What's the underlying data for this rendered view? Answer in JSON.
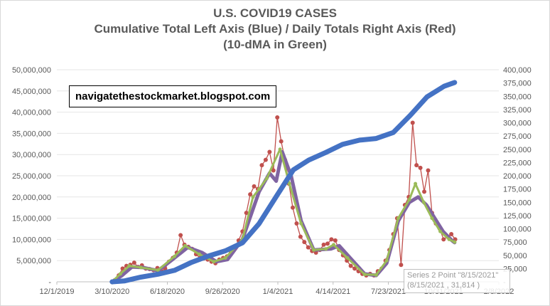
{
  "chart_data": {
    "type": "line",
    "title": "U.S. COVID19 CASES",
    "subtitle": "Cumulative Total Left Axis (Blue) / Daily Totals Right Axis (Red)",
    "subtitle2": "(10-dMA in Green)",
    "annotation": "navigatethestockmarket.blogspot.com",
    "tooltip": {
      "line1": "Series 2 Point \"8/15/2021\"",
      "line2": "(8/15/2021 , 31,814 )"
    },
    "x_axis": {
      "ticks": [
        "12/1/2019",
        "3/10/2020",
        "6/18/2020",
        "9/26/2020",
        "1/4/2021",
        "4/14/2021",
        "7/23/2021",
        "10/31/2021",
        "2/8/2022"
      ],
      "range": [
        "2019-12-01",
        "2022-02-08"
      ]
    },
    "y_left": {
      "ylim": [
        0,
        50000000
      ],
      "ticks": [
        "-",
        "5,000,000",
        "10,000,000",
        "15,000,000",
        "20,000,000",
        "25,000,000",
        "30,000,000",
        "35,000,000",
        "40,000,000",
        "45,000,000",
        "50,000,000"
      ]
    },
    "y_right": {
      "ylim": [
        0,
        400000
      ],
      "ticks": [
        "-",
        "25,000",
        "50,000",
        "75,000",
        "100,000",
        "125,000",
        "150,000",
        "175,000",
        "200,000",
        "225,000",
        "250,000",
        "275,000",
        "300,000",
        "325,000",
        "350,000",
        "375,000",
        "400,000"
      ]
    },
    "colors": {
      "cumulative": "#4472c4",
      "daily": "#c0504d",
      "ma10": "#9bbb59",
      "ma_long": "#8064a2"
    },
    "series": [
      {
        "key": "cumulative",
        "axis": "left",
        "kind": "line",
        "x": [
          "2020-03-10",
          "2020-04-01",
          "2020-05-01",
          "2020-06-01",
          "2020-07-01",
          "2020-08-01",
          "2020-09-01",
          "2020-10-01",
          "2020-11-01",
          "2020-12-01",
          "2021-01-01",
          "2021-02-01",
          "2021-03-01",
          "2021-04-01",
          "2021-05-01",
          "2021-06-01",
          "2021-07-01",
          "2021-08-01",
          "2021-09-01",
          "2021-10-01",
          "2021-11-01",
          "2021-11-20"
        ],
        "y": [
          1000,
          200000,
          1100000,
          1800000,
          2700000,
          4600000,
          6100000,
          7300000,
          9200000,
          13700000,
          20100000,
          26400000,
          28700000,
          30500000,
          32400000,
          33400000,
          33800000,
          35200000,
          39300000,
          43600000,
          46100000,
          47000000
        ]
      },
      {
        "key": "daily",
        "axis": "right",
        "kind": "scatter-line",
        "x": [
          "2020-03-15",
          "2020-03-22",
          "2020-03-29",
          "2020-04-05",
          "2020-04-12",
          "2020-04-19",
          "2020-04-26",
          "2020-05-03",
          "2020-05-10",
          "2020-05-17",
          "2020-05-24",
          "2020-05-31",
          "2020-06-07",
          "2020-06-14",
          "2020-06-21",
          "2020-06-28",
          "2020-07-05",
          "2020-07-12",
          "2020-07-19",
          "2020-07-26",
          "2020-08-02",
          "2020-08-09",
          "2020-08-16",
          "2020-08-23",
          "2020-08-30",
          "2020-09-06",
          "2020-09-13",
          "2020-09-20",
          "2020-09-27",
          "2020-10-04",
          "2020-10-11",
          "2020-10-18",
          "2020-10-25",
          "2020-11-01",
          "2020-11-08",
          "2020-11-15",
          "2020-11-22",
          "2020-11-29",
          "2020-12-06",
          "2020-12-13",
          "2020-12-20",
          "2020-12-27",
          "2021-01-03",
          "2021-01-10",
          "2021-01-17",
          "2021-01-24",
          "2021-01-31",
          "2021-02-07",
          "2021-02-14",
          "2021-02-21",
          "2021-02-28",
          "2021-03-07",
          "2021-03-14",
          "2021-03-21",
          "2021-03-28",
          "2021-04-04",
          "2021-04-11",
          "2021-04-18",
          "2021-04-25",
          "2021-05-02",
          "2021-05-09",
          "2021-05-16",
          "2021-05-23",
          "2021-05-30",
          "2021-06-06",
          "2021-06-13",
          "2021-06-20",
          "2021-06-27",
          "2021-07-04",
          "2021-07-11",
          "2021-07-18",
          "2021-07-25",
          "2021-08-01",
          "2021-08-08",
          "2021-08-15",
          "2021-08-22",
          "2021-08-29",
          "2021-09-05",
          "2021-09-12",
          "2021-09-19",
          "2021-09-26",
          "2021-10-03",
          "2021-10-10",
          "2021-10-17",
          "2021-10-24",
          "2021-10-31",
          "2021-11-07",
          "2021-11-14",
          "2021-11-21"
        ],
        "y": [
          3000,
          12000,
          25000,
          30000,
          32000,
          36000,
          28000,
          31000,
          25000,
          24000,
          22000,
          26000,
          20000,
          25000,
          38000,
          45000,
          55000,
          88000,
          70000,
          66000,
          62000,
          52000,
          45000,
          44000,
          42000,
          38000,
          35000,
          42000,
          45000,
          48000,
          56000,
          65000,
          78000,
          95000,
          130000,
          165000,
          180000,
          175000,
          220000,
          230000,
          245000,
          210000,
          310000,
          265000,
          230000,
          185000,
          140000,
          110000,
          85000,
          75000,
          65000,
          58000,
          55000,
          60000,
          70000,
          72000,
          80000,
          78000,
          60000,
          50000,
          40000,
          30000,
          25000,
          20000,
          15000,
          12000,
          15000,
          12000,
          20000,
          25000,
          40000,
          60000,
          90000,
          120000,
          31814,
          145000,
          160000,
          300000,
          220000,
          215000,
          170000,
          210000,
          130000,
          110000,
          100000,
          80000,
          85000,
          90000,
          80000
        ]
      },
      {
        "key": "ma10",
        "axis": "right",
        "kind": "line",
        "x": [
          "2020-03-10",
          "2020-03-25",
          "2020-04-10",
          "2020-05-01",
          "2020-06-01",
          "2020-07-01",
          "2020-07-20",
          "2020-08-15",
          "2020-09-10",
          "2020-10-01",
          "2020-11-01",
          "2020-11-20",
          "2020-12-01",
          "2020-12-15",
          "2021-01-08",
          "2021-01-25",
          "2021-02-15",
          "2021-03-10",
          "2021-04-01",
          "2021-04-15",
          "2021-05-10",
          "2021-06-10",
          "2021-07-01",
          "2021-07-20",
          "2021-08-10",
          "2021-08-30",
          "2021-09-10",
          "2021-09-25",
          "2021-10-10",
          "2021-10-25",
          "2021-11-10",
          "2021-11-20"
        ],
        "y": [
          300,
          15000,
          30000,
          27000,
          22000,
          48000,
          68000,
          52000,
          38000,
          45000,
          80000,
          160000,
          175000,
          195000,
          250000,
          185000,
          110000,
          60000,
          62000,
          70000,
          45000,
          14000,
          13000,
          40000,
          120000,
          155000,
          185000,
          150000,
          120000,
          95000,
          80000,
          75000
        ]
      },
      {
        "key": "ma_long",
        "axis": "right",
        "kind": "line",
        "x": [
          "2020-03-10",
          "2020-03-28",
          "2020-04-15",
          "2020-05-05",
          "2020-06-01",
          "2020-06-25",
          "2020-07-25",
          "2020-08-20",
          "2020-09-15",
          "2020-10-05",
          "2020-11-01",
          "2020-12-01",
          "2020-12-20",
          "2021-01-01",
          "2021-01-12",
          "2021-01-28",
          "2021-02-15",
          "2021-03-10",
          "2021-04-10",
          "2021-04-25",
          "2021-05-15",
          "2021-06-10",
          "2021-07-01",
          "2021-07-20",
          "2021-08-10",
          "2021-08-30",
          "2021-09-15",
          "2021-09-30",
          "2021-10-15",
          "2021-10-30",
          "2021-11-15",
          "2021-11-20"
        ],
        "y": [
          0,
          12000,
          28000,
          27000,
          21000,
          40000,
          65000,
          55000,
          38000,
          42000,
          80000,
          170000,
          205000,
          190000,
          245000,
          200000,
          115000,
          60000,
          62000,
          68000,
          45000,
          15000,
          12000,
          35000,
          115000,
          150000,
          160000,
          145000,
          120000,
          95000,
          78000,
          74000
        ]
      }
    ]
  }
}
